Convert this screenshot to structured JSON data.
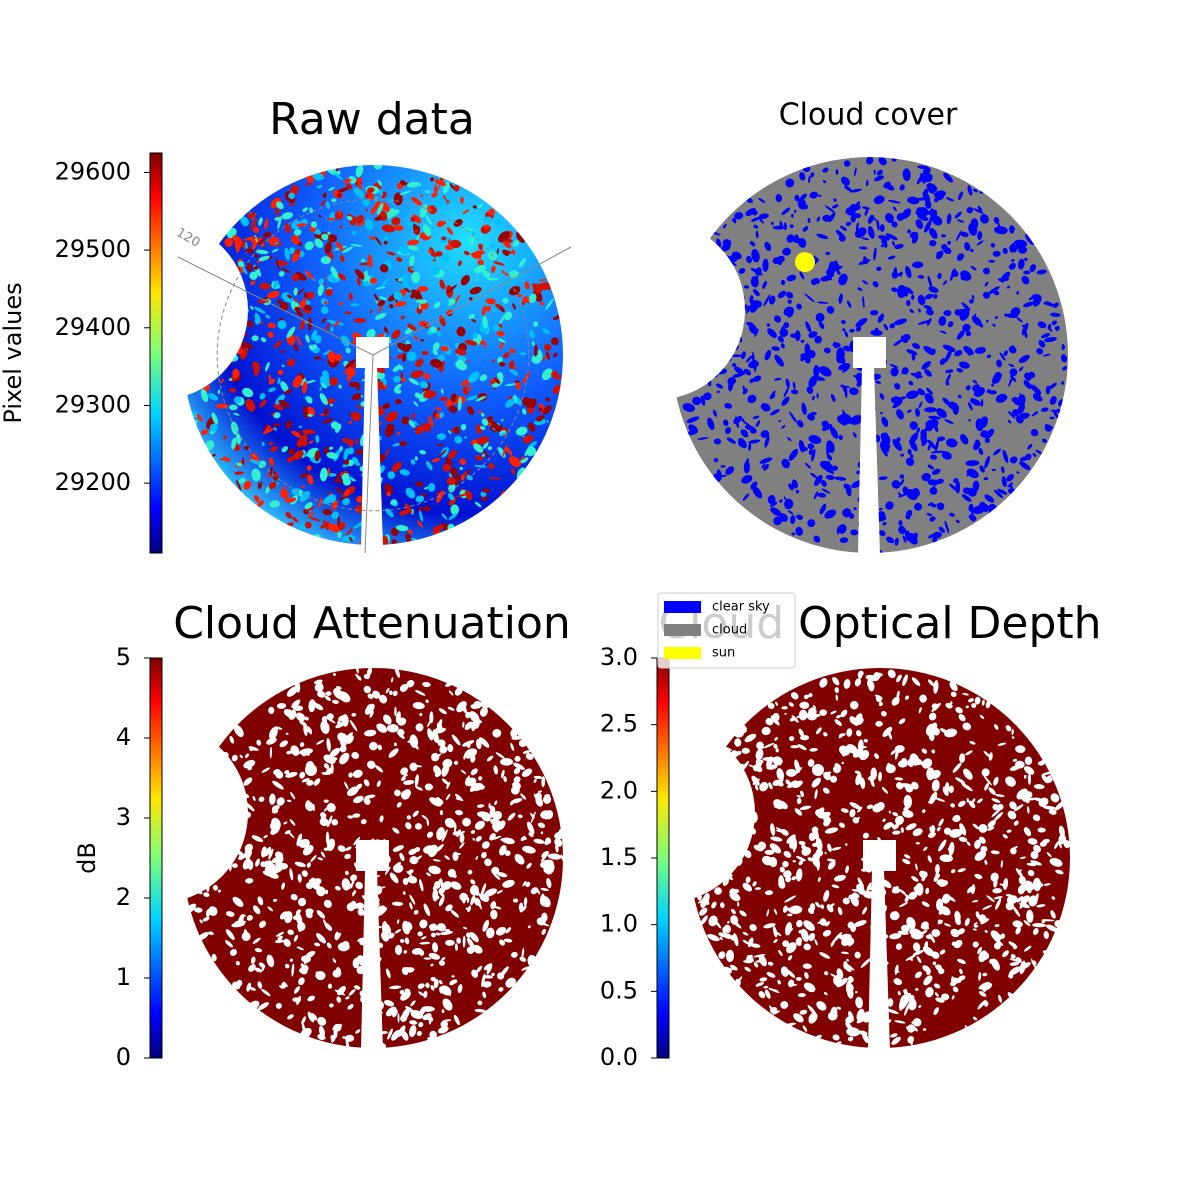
{
  "chart_data": [
    {
      "type": "image",
      "title": "Raw data",
      "colorbar_label": "Pixel values",
      "colormap": "jet",
      "ylim": [
        29110,
        29625
      ],
      "yticks": [
        29200,
        29300,
        29400,
        29500,
        29600
      ],
      "annotations": [
        "120"
      ]
    },
    {
      "type": "image",
      "title": "Cloud cover",
      "legend_entries": [
        {
          "name": "clear sky",
          "color": "#0000ff"
        },
        {
          "name": "cloud",
          "color": "#808080"
        },
        {
          "name": "sun",
          "color": "#ffff00"
        }
      ]
    },
    {
      "type": "image",
      "title": "Cloud Attenuation",
      "colorbar_label": "dB",
      "colormap": "jet",
      "color": "#800000",
      "ylim": [
        0,
        5
      ],
      "yticks": [
        0,
        1,
        2,
        3,
        4,
        5
      ]
    },
    {
      "type": "image",
      "title": "Cloud Optical Depth",
      "colormap": "jet",
      "color": "#800000",
      "ylim": [
        0,
        3
      ],
      "yticks": [
        {
          "value": 0,
          "label": "0.0"
        },
        {
          "value": 0.5,
          "label": "0.5"
        },
        {
          "value": 1,
          "label": "1.0"
        },
        {
          "value": 1.5,
          "label": "1.5"
        },
        {
          "value": 2,
          "label": "2.0"
        },
        {
          "value": 2.5,
          "label": "2.5"
        },
        {
          "value": 3,
          "label": "3.0"
        }
      ]
    }
  ]
}
